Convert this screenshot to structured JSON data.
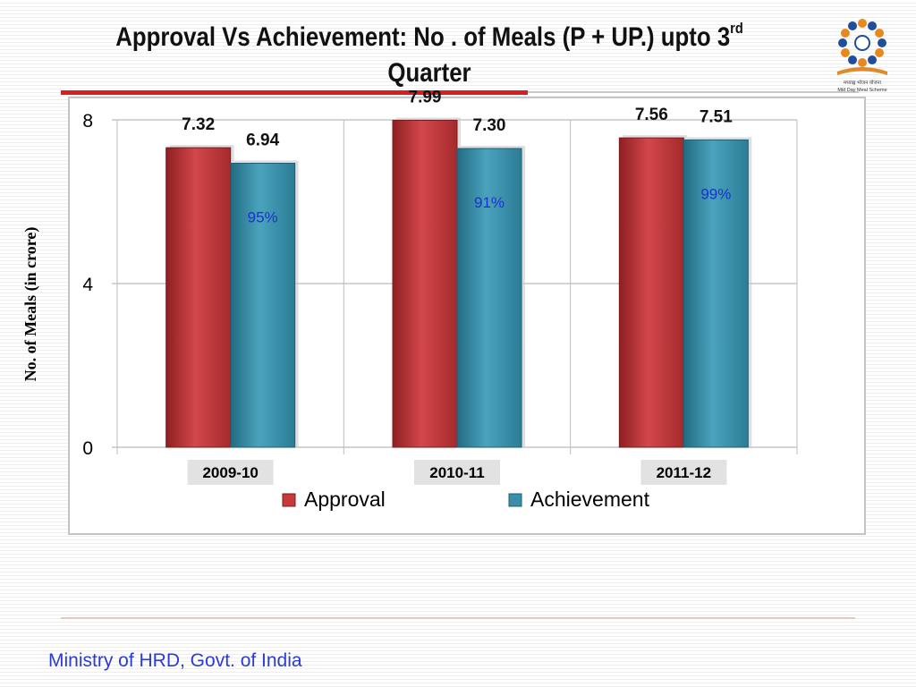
{
  "slide": {
    "title_main": "Approval Vs Achievement:  No . of Meals (P + UP.) upto 3",
    "title_sup": "rd",
    "title_line2": "Quarter",
    "footer": "Ministry of HRD, Govt. of India",
    "logo_text": "मध्याह्न भोजन योजना",
    "logo_subtext": "Mid Day Meal Scheme"
  },
  "colors": {
    "approval": "#c8393c",
    "achievement": "#3b8ea8",
    "percent_label": "#1b2fd6",
    "title_rule": "#d42020"
  },
  "chart_data": {
    "type": "bar",
    "title": "",
    "ylabel": "No. of Meals (in crore)",
    "xlabel": "",
    "categories": [
      "2009-10",
      "2010-11",
      "2011-12"
    ],
    "series": [
      {
        "name": "Approval",
        "values": [
          7.32,
          7.99,
          7.56
        ],
        "labels": [
          "7.32",
          "7.99",
          "7.56"
        ]
      },
      {
        "name": "Achievement",
        "values": [
          6.94,
          7.3,
          7.51
        ],
        "labels": [
          "6.94",
          "7.30",
          "7.51"
        ]
      }
    ],
    "percent_labels": [
      "95%",
      "91%",
      "99%"
    ],
    "ylim": [
      0,
      8
    ],
    "yticks": [
      0,
      4,
      8
    ],
    "grid": true,
    "legend": "bottom"
  }
}
